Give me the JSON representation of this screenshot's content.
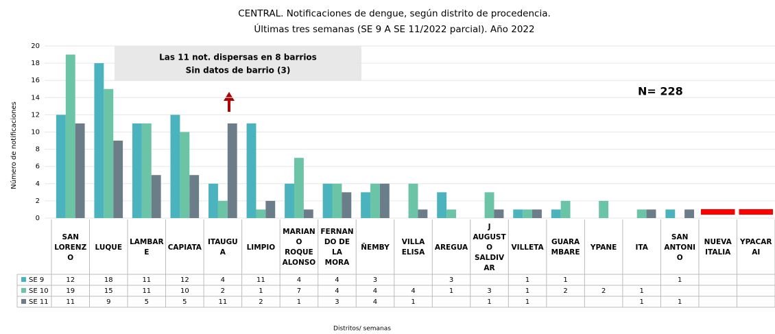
{
  "chart_data": {
    "type": "bar",
    "title": "CENTRAL. Notificaciones de dengue, según distrito de procedencia.",
    "subtitle": "Últimas tres semanas (SE 9 A SE 11/2022 parcial). Año 2022",
    "y_label": "Número de notificaciones",
    "x_label": "Distritos/ semanas",
    "annotations": [
      "Las 11 not. dispersas en 8 barrios",
      "Sin datos de barrio (3)",
      "N= 228"
    ],
    "categories": [
      "SAN LORENZO",
      "LUQUE",
      "LAMBARE",
      "CAPIATA",
      "ITAUGUA",
      "LIMPIO",
      "MARIANO ROQUE ALONSO",
      "FERNANDO DE LA MORA",
      "ÑEMBY",
      "VILLA ELISA",
      "AREGUA",
      "J AUGUSTO SALDIVAR",
      "VILLETA",
      "GUARAMBARE",
      "YPANE",
      "ITA",
      "SAN ANTONIO",
      "NUEVA ITALIA",
      "YPACARAI"
    ],
    "series": [
      {
        "name": "SE 9",
        "color": "#4bb3bd",
        "values": [
          12,
          18,
          11,
          12,
          4,
          11,
          4,
          4,
          3,
          null,
          3,
          null,
          1,
          1,
          null,
          null,
          1,
          null,
          null
        ]
      },
      {
        "name": "SE 10",
        "color": "#6cc4a6",
        "values": [
          19,
          15,
          11,
          10,
          2,
          1,
          7,
          4,
          4,
          4,
          1,
          3,
          1,
          2,
          2,
          1,
          null,
          null,
          null
        ]
      },
      {
        "name": "SE 11",
        "color": "#6b7d88",
        "values": [
          11,
          9,
          5,
          5,
          11,
          2,
          1,
          3,
          4,
          1,
          null,
          1,
          1,
          null,
          null,
          1,
          1,
          null,
          null
        ]
      }
    ],
    "ylim": [
      0,
      20
    ],
    "yticks": [
      0,
      2,
      4,
      6,
      8,
      10,
      12,
      14,
      16,
      18,
      20
    ],
    "grid": true
  }
}
